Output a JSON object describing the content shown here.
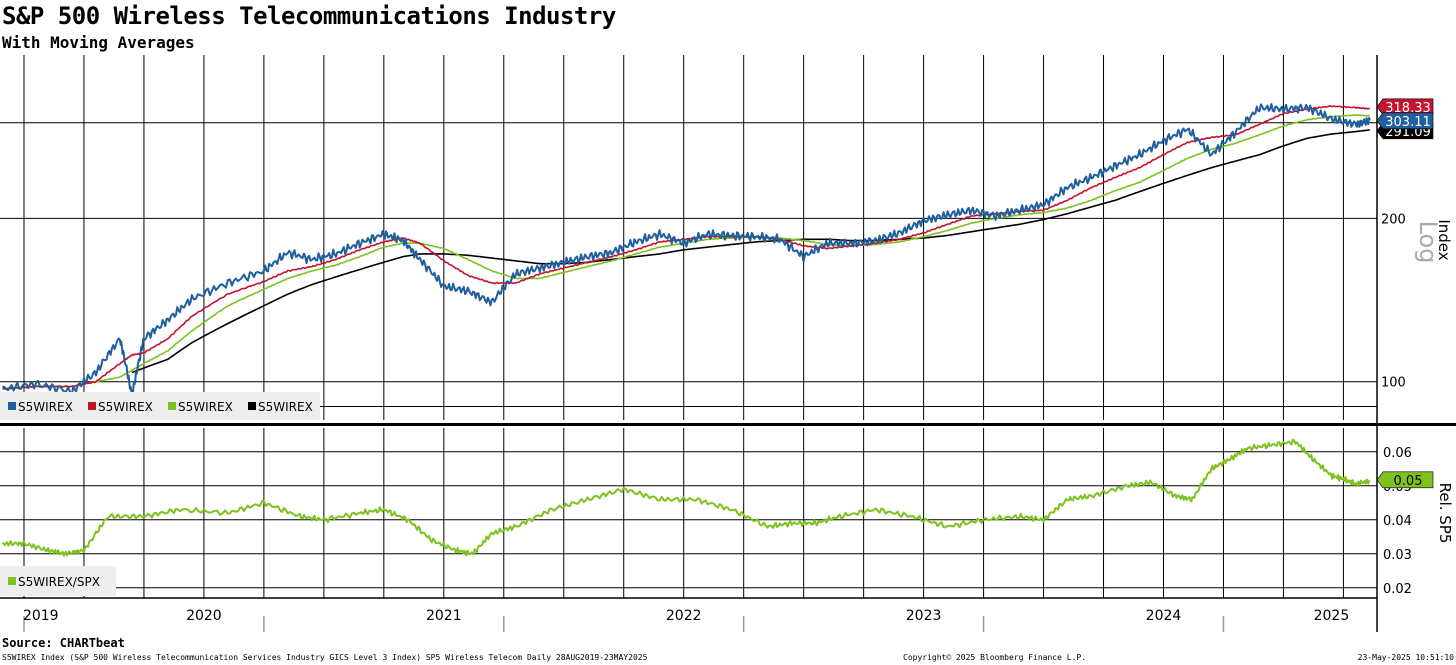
{
  "header": {
    "title": "S&P 500 Wireless Telecommunications Industry",
    "subtitle": "With Moving Averages"
  },
  "footer": {
    "source": "Source: CHARTbeat",
    "description": "S5WIREX Index (S&P 500 Wireless Telecommunication Services Industry GICS Level 3 Index) SP5 Wireless Telecom  Daily 28AUG2019-23MAY2025",
    "copyright": "Copyright© 2025 Bloomberg Finance L.P.",
    "timestamp": "23-May-2025 10:51:10"
  },
  "colors": {
    "price": "#1f5f9e",
    "ma_short": "#c4122f",
    "ma_mid": "#7dc21e",
    "ma_long": "#000000",
    "relative": "#7dc21e"
  },
  "chart_data": [
    {
      "type": "line",
      "panel": "upper",
      "y_scale": "log",
      "ylim": [
        85,
        400
      ],
      "ylabel": "Index",
      "scale_label": "Log",
      "yticks": [
        "100",
        "200"
      ],
      "y_tick_values": [
        100,
        200
      ],
      "x_tick_labels": [
        "2019",
        "2020",
        "2021",
        "2022",
        "2023",
        "2024",
        "2025"
      ],
      "x_tick_years": [
        2019.82,
        2020.5,
        2021.5,
        2022.5,
        2023.5,
        2024.5,
        2025.2
      ],
      "x_range": [
        2019.65,
        2025.39
      ],
      "legend": [
        "S5WIREX",
        "S5WIREX",
        "S5WIREX",
        "S5WIREX"
      ],
      "legend_position": "bottom-left",
      "last_value_tags": [
        {
          "label": "318.33",
          "value": 318.33,
          "color": "#c4122f"
        },
        {
          "label": "303.11",
          "value": 303.11,
          "color": "#1f5f9e"
        },
        {
          "label": "291.09",
          "value": 291.09,
          "color": "#000000"
        }
      ],
      "x": [
        2019.66,
        2019.8,
        2019.95,
        2020.05,
        2020.15,
        2020.2,
        2020.25,
        2020.35,
        2020.45,
        2020.6,
        2020.75,
        2020.85,
        2020.95,
        2021.05,
        2021.15,
        2021.25,
        2021.33,
        2021.4,
        2021.5,
        2021.6,
        2021.7,
        2021.8,
        2021.9,
        2022.0,
        2022.1,
        2022.2,
        2022.3,
        2022.4,
        2022.5,
        2022.6,
        2022.7,
        2022.8,
        2022.9,
        2023.0,
        2023.1,
        2023.2,
        2023.3,
        2023.4,
        2023.5,
        2023.6,
        2023.7,
        2023.8,
        2023.9,
        2024.0,
        2024.1,
        2024.2,
        2024.3,
        2024.4,
        2024.5,
        2024.6,
        2024.7,
        2024.8,
        2024.9,
        2025.0,
        2025.1,
        2025.2,
        2025.3,
        2025.36
      ],
      "series": [
        {
          "name": "S5WIREX",
          "values": [
            97,
            99,
            96,
            104,
            120,
            94,
            120,
            130,
            142,
            152,
            160,
            173,
            168,
            172,
            180,
            187,
            182,
            168,
            150,
            147,
            140,
            158,
            162,
            166,
            170,
            173,
            181,
            187,
            180,
            187,
            186,
            185,
            183,
            170,
            180,
            180,
            182,
            188,
            198,
            203,
            207,
            202,
            207,
            212,
            228,
            238,
            250,
            262,
            278,
            292,
            262,
            288,
            320,
            318,
            320,
            305,
            298,
            303.11
          ]
        },
        {
          "name": "S5WIREX",
          "values": [
            97,
            98,
            98,
            100,
            108,
            112,
            113,
            120,
            132,
            145,
            153,
            160,
            163,
            168,
            175,
            181,
            184,
            180,
            167,
            157,
            152,
            152,
            158,
            162,
            166,
            170,
            175,
            181,
            183,
            185,
            185,
            185,
            183,
            178,
            176,
            178,
            180,
            183,
            188,
            195,
            202,
            204,
            206,
            207,
            216,
            228,
            238,
            248,
            262,
            276,
            282,
            285,
            298,
            312,
            318,
            322,
            320,
            318.33
          ]
        },
        {
          "name": "S5WIREX",
          "values": [
            97,
            98,
            98,
            100,
            102,
            105,
            108,
            114,
            124,
            138,
            148,
            155,
            160,
            164,
            170,
            177,
            180,
            180,
            176,
            168,
            160,
            155,
            155,
            159,
            163,
            167,
            172,
            177,
            180,
            183,
            184,
            185,
            184,
            182,
            179,
            178,
            179,
            181,
            185,
            190,
            196,
            200,
            203,
            205,
            209,
            216,
            225,
            233,
            245,
            258,
            268,
            275,
            285,
            296,
            304,
            308,
            310,
            309
          ]
        },
        {
          "name": "S5WIREX",
          "values": [
            null,
            null,
            null,
            null,
            null,
            104,
            106,
            110,
            118,
            128,
            138,
            145,
            151,
            156,
            161,
            166,
            170,
            172,
            172,
            171,
            169,
            167,
            165,
            165,
            166,
            168,
            170,
            172,
            175,
            177,
            179,
            181,
            182,
            183,
            183,
            182,
            182,
            183,
            184,
            186,
            189,
            192,
            195,
            199,
            204,
            210,
            216,
            224,
            232,
            240,
            248,
            255,
            262,
            272,
            281,
            286,
            289,
            291.09
          ]
        }
      ]
    },
    {
      "type": "line",
      "panel": "lower",
      "ylim": [
        0.017,
        0.067
      ],
      "ylabel": "Rel. SP5",
      "yticks": [
        "0.02",
        "0.03",
        "0.04",
        "0.05",
        "0.06"
      ],
      "y_tick_values": [
        0.02,
        0.03,
        0.04,
        0.05,
        0.06
      ],
      "legend": [
        "S5WIREX/SPX"
      ],
      "legend_position": "bottom-left",
      "last_value_tags": [
        {
          "label": "0.05",
          "value": 0.0515,
          "color": "#7dc21e"
        }
      ],
      "x": [
        2019.66,
        2019.75,
        2019.85,
        2019.92,
        2020.0,
        2020.1,
        2020.25,
        2020.4,
        2020.6,
        2020.75,
        2020.9,
        2021.0,
        2021.15,
        2021.25,
        2021.35,
        2021.45,
        2021.55,
        2021.62,
        2021.7,
        2021.8,
        2021.95,
        2022.1,
        2022.25,
        2022.4,
        2022.55,
        2022.7,
        2022.85,
        2022.95,
        2023.05,
        2023.15,
        2023.3,
        2023.45,
        2023.6,
        2023.75,
        2023.9,
        2024.0,
        2024.1,
        2024.2,
        2024.35,
        2024.45,
        2024.55,
        2024.62,
        2024.7,
        2024.78,
        2024.85,
        2024.95,
        2025.05,
        2025.12,
        2025.2,
        2025.25,
        2025.3,
        2025.36
      ],
      "series": [
        {
          "name": "S5WIREX/SPX",
          "values": [
            0.033,
            0.033,
            0.031,
            0.03,
            0.031,
            0.041,
            0.041,
            0.043,
            0.042,
            0.045,
            0.041,
            0.04,
            0.042,
            0.043,
            0.04,
            0.034,
            0.031,
            0.03,
            0.036,
            0.038,
            0.043,
            0.046,
            0.049,
            0.046,
            0.046,
            0.043,
            0.038,
            0.039,
            0.039,
            0.041,
            0.043,
            0.041,
            0.038,
            0.04,
            0.041,
            0.04,
            0.046,
            0.047,
            0.05,
            0.051,
            0.047,
            0.046,
            0.055,
            0.058,
            0.061,
            0.062,
            0.063,
            0.058,
            0.053,
            0.052,
            0.0505,
            0.0515
          ]
        }
      ]
    }
  ]
}
